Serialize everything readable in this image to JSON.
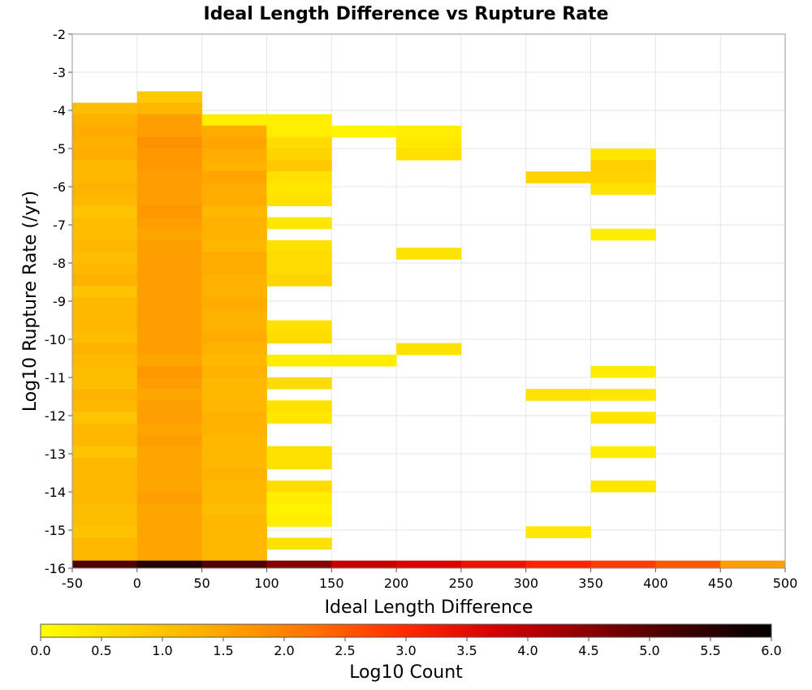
{
  "chart_data": {
    "type": "heatmap",
    "title": "Ideal Length Difference vs Rupture Rate",
    "xlabel": "Ideal Length Difference",
    "ylabel": "Log10 Rupture Rate (/yr)",
    "xlim": [
      -50,
      500
    ],
    "ylim": [
      -16,
      -2
    ],
    "x_ticks": [
      -50,
      0,
      50,
      100,
      150,
      200,
      250,
      300,
      350,
      400,
      450,
      500
    ],
    "y_ticks": [
      -2,
      -3,
      -4,
      -5,
      -6,
      -7,
      -8,
      -9,
      -10,
      -11,
      -12,
      -13,
      -14,
      -15,
      -16
    ],
    "grid": true,
    "x_bin_width": 50,
    "y_bin_height": 0.3,
    "colorbar": {
      "label": "Log10 Count",
      "range": [
        0,
        6
      ],
      "ticks": [
        "0.0",
        "0.5",
        "1.0",
        "1.5",
        "2.0",
        "2.5",
        "3.0",
        "3.5",
        "4.0",
        "4.5",
        "5.0",
        "5.5",
        "6.0"
      ],
      "colors": [
        "#ffff00",
        "#ffd200",
        "#ffa500",
        "#ff7000",
        "#ff2a00",
        "#d40000",
        "#8b0000",
        "#400000",
        "#000000"
      ]
    },
    "columns": [
      {
        "x_start": -50,
        "cells": [
          [
            -4.1,
            1.1
          ],
          [
            -4.4,
            1.3
          ],
          [
            -4.7,
            1.4
          ],
          [
            -5.0,
            1.3
          ],
          [
            -5.3,
            1.4
          ],
          [
            -5.6,
            1.2
          ],
          [
            -5.9,
            1.2
          ],
          [
            -6.2,
            1.3
          ],
          [
            -6.5,
            1.2
          ],
          [
            -6.8,
            1.0
          ],
          [
            -7.1,
            1.1
          ],
          [
            -7.4,
            1.1
          ],
          [
            -7.7,
            1.2
          ],
          [
            -8.0,
            1.1
          ],
          [
            -8.3,
            1.2
          ],
          [
            -8.6,
            1.3
          ],
          [
            -8.9,
            1.0
          ],
          [
            -9.2,
            1.2
          ],
          [
            -9.5,
            1.2
          ],
          [
            -9.8,
            1.2
          ],
          [
            -10.1,
            1.1
          ],
          [
            -10.4,
            1.3
          ],
          [
            -10.7,
            1.2
          ],
          [
            -11.0,
            1.1
          ],
          [
            -11.3,
            1.1
          ],
          [
            -11.6,
            1.3
          ],
          [
            -11.9,
            1.2
          ],
          [
            -12.2,
            1.0
          ],
          [
            -12.5,
            1.2
          ],
          [
            -12.8,
            1.2
          ],
          [
            -13.1,
            1.0
          ],
          [
            -13.4,
            1.2
          ],
          [
            -13.7,
            1.2
          ],
          [
            -14.0,
            1.2
          ],
          [
            -14.3,
            1.2
          ],
          [
            -14.6,
            1.1
          ],
          [
            -14.9,
            1.1
          ],
          [
            -15.2,
            1.0
          ],
          [
            -15.5,
            1.2
          ],
          [
            -15.8,
            1.2
          ]
        ]
      },
      {
        "x_start": 0,
        "cells": [
          [
            -3.8,
            0.9
          ],
          [
            -4.1,
            1.2
          ],
          [
            -4.4,
            1.6
          ],
          [
            -4.7,
            1.6
          ],
          [
            -5.0,
            1.8
          ],
          [
            -5.3,
            1.7
          ],
          [
            -5.6,
            1.7
          ],
          [
            -5.9,
            1.6
          ],
          [
            -6.2,
            1.6
          ],
          [
            -6.5,
            1.6
          ],
          [
            -6.8,
            1.7
          ],
          [
            -7.1,
            1.6
          ],
          [
            -7.4,
            1.5
          ],
          [
            -7.7,
            1.6
          ],
          [
            -8.0,
            1.6
          ],
          [
            -8.3,
            1.6
          ],
          [
            -8.6,
            1.6
          ],
          [
            -8.9,
            1.6
          ],
          [
            -9.2,
            1.6
          ],
          [
            -9.5,
            1.6
          ],
          [
            -9.8,
            1.6
          ],
          [
            -10.1,
            1.6
          ],
          [
            -10.4,
            1.6
          ],
          [
            -10.7,
            1.5
          ],
          [
            -11.0,
            1.7
          ],
          [
            -11.3,
            1.6
          ],
          [
            -11.6,
            1.5
          ],
          [
            -11.9,
            1.6
          ],
          [
            -12.2,
            1.6
          ],
          [
            -12.5,
            1.5
          ],
          [
            -12.8,
            1.6
          ],
          [
            -13.1,
            1.5
          ],
          [
            -13.4,
            1.5
          ],
          [
            -13.7,
            1.5
          ],
          [
            -14.0,
            1.5
          ],
          [
            -14.3,
            1.6
          ],
          [
            -14.6,
            1.5
          ],
          [
            -14.9,
            1.5
          ],
          [
            -15.2,
            1.5
          ],
          [
            -15.5,
            1.5
          ],
          [
            -15.8,
            1.5
          ]
        ]
      },
      {
        "x_start": 50,
        "cells": [
          [
            -4.4,
            0.3
          ],
          [
            -4.7,
            1.4
          ],
          [
            -5.0,
            1.5
          ],
          [
            -5.3,
            1.4
          ],
          [
            -5.6,
            1.3
          ],
          [
            -5.9,
            1.5
          ],
          [
            -6.2,
            1.4
          ],
          [
            -6.5,
            1.4
          ],
          [
            -6.8,
            1.2
          ],
          [
            -7.1,
            1.3
          ],
          [
            -7.4,
            1.3
          ],
          [
            -7.7,
            1.2
          ],
          [
            -8.0,
            1.4
          ],
          [
            -8.3,
            1.4
          ],
          [
            -8.6,
            1.3
          ],
          [
            -8.9,
            1.3
          ],
          [
            -9.2,
            1.4
          ],
          [
            -9.5,
            1.3
          ],
          [
            -9.8,
            1.3
          ],
          [
            -10.1,
            1.4
          ],
          [
            -10.4,
            1.3
          ],
          [
            -10.7,
            1.2
          ],
          [
            -11.0,
            1.3
          ],
          [
            -11.3,
            1.2
          ],
          [
            -11.6,
            1.2
          ],
          [
            -11.9,
            1.2
          ],
          [
            -12.2,
            1.3
          ],
          [
            -12.5,
            1.3
          ],
          [
            -12.8,
            1.2
          ],
          [
            -13.1,
            1.2
          ],
          [
            -13.4,
            1.2
          ],
          [
            -13.7,
            1.3
          ],
          [
            -14.0,
            1.2
          ],
          [
            -14.3,
            1.2
          ],
          [
            -14.6,
            1.1
          ],
          [
            -14.9,
            1.2
          ],
          [
            -15.2,
            1.2
          ],
          [
            -15.5,
            1.2
          ],
          [
            -15.8,
            1.2
          ]
        ]
      },
      {
        "x_start": 100,
        "cells": [
          [
            -4.4,
            0.3
          ],
          [
            -4.7,
            0.3
          ],
          [
            -5.0,
            0.6
          ],
          [
            -5.3,
            0.7
          ],
          [
            -5.6,
            0.9
          ],
          [
            -5.9,
            0.5
          ],
          [
            -6.2,
            0.4
          ],
          [
            -6.5,
            0.5
          ],
          [
            -7.1,
            0.4
          ],
          [
            -7.7,
            0.5
          ],
          [
            -8.0,
            0.6
          ],
          [
            -8.3,
            0.6
          ],
          [
            -8.6,
            0.7
          ],
          [
            -9.8,
            0.5
          ],
          [
            -10.1,
            0.6
          ],
          [
            -10.7,
            0.3
          ],
          [
            -11.3,
            0.6
          ],
          [
            -11.9,
            0.5
          ],
          [
            -12.2,
            0.4
          ],
          [
            -13.1,
            0.5
          ],
          [
            -13.4,
            0.5
          ],
          [
            -14.0,
            0.6
          ],
          [
            -14.3,
            0.3
          ],
          [
            -14.6,
            0.2
          ],
          [
            -14.9,
            0.3
          ],
          [
            -15.5,
            0.5
          ]
        ]
      },
      {
        "x_start": 150,
        "cells": [
          [
            -4.7,
            0.2
          ],
          [
            -10.7,
            0.3
          ]
        ]
      },
      {
        "x_start": 200,
        "cells": [
          [
            -4.7,
            0.3
          ],
          [
            -5.0,
            0.4
          ],
          [
            -5.3,
            0.5
          ],
          [
            -7.9,
            0.5
          ],
          [
            -10.4,
            0.5
          ]
        ]
      },
      {
        "x_start": 300,
        "cells": [
          [
            -5.9,
            0.7
          ],
          [
            -11.6,
            0.5
          ],
          [
            -15.2,
            0.4
          ]
        ]
      },
      {
        "x_start": 350,
        "cells": [
          [
            -5.3,
            0.4
          ],
          [
            -5.6,
            0.8
          ],
          [
            -5.9,
            0.7
          ],
          [
            -6.2,
            0.5
          ],
          [
            -7.4,
            0.3
          ],
          [
            -11.0,
            0.3
          ],
          [
            -11.6,
            0.4
          ],
          [
            -12.2,
            0.4
          ],
          [
            -13.1,
            0.3
          ],
          [
            -14.0,
            0.4
          ]
        ]
      }
    ],
    "bottom_row": {
      "y_start": -16.1,
      "values": [
        5.1,
        5.6,
        5.1,
        4.6,
        3.9,
        3.7,
        3.4,
        3.1,
        2.8,
        2.5,
        1.6
      ]
    }
  }
}
